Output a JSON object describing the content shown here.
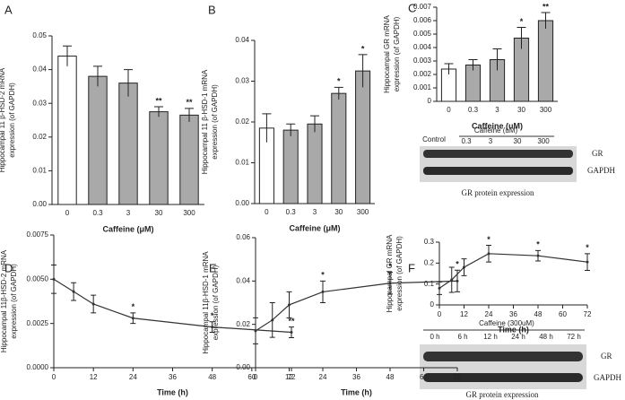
{
  "chart_data": [
    {
      "type": "bar",
      "panel": "A",
      "ylabel": [
        "Hippocampal 11 β-HSD-2 mRNA",
        "expression (of GAPDH)"
      ],
      "xlabel": "Caffeine (μM)",
      "categories": [
        "0",
        "0.3",
        "3",
        "30",
        "300"
      ],
      "values": [
        0.044,
        0.038,
        0.036,
        0.0275,
        0.0265
      ],
      "errors": [
        0.003,
        0.003,
        0.004,
        0.0015,
        0.002
      ],
      "colors": [
        "#ffffff",
        "#a9a9a9",
        "#a9a9a9",
        "#a9a9a9",
        "#a9a9a9"
      ],
      "annotations": [
        null,
        null,
        null,
        "**",
        "**"
      ],
      "ylim": [
        0,
        0.05
      ],
      "yticks": [
        {
          "value": 0,
          "label": "0.00"
        },
        {
          "value": 0.01,
          "label": "0.01"
        },
        {
          "value": 0.02,
          "label": "0.02"
        },
        {
          "value": 0.03,
          "label": "0.03"
        },
        {
          "value": 0.04,
          "label": "0.04"
        },
        {
          "value": 0.05,
          "label": "0.05"
        }
      ]
    },
    {
      "type": "bar",
      "panel": "B",
      "ylabel": [
        "Hippocampal 11 β-HSD-1 mRNA",
        "expression (of GAPDH)"
      ],
      "xlabel": "Caffeine (μM)",
      "categories": [
        "0",
        "0.3",
        "3",
        "30",
        "300"
      ],
      "values": [
        0.0185,
        0.018,
        0.0195,
        0.027,
        0.0325
      ],
      "errors": [
        0.0035,
        0.0015,
        0.002,
        0.0015,
        0.004
      ],
      "colors": [
        "#ffffff",
        "#a9a9a9",
        "#a9a9a9",
        "#a9a9a9",
        "#a9a9a9"
      ],
      "annotations": [
        null,
        null,
        null,
        "*",
        "*"
      ],
      "ylim": [
        0,
        0.04
      ],
      "yticks": [
        {
          "value": 0,
          "label": "0.00"
        },
        {
          "value": 0.01,
          "label": "0.01"
        },
        {
          "value": 0.02,
          "label": "0.02"
        },
        {
          "value": 0.03,
          "label": "0.03"
        },
        {
          "value": 0.04,
          "label": "0.04"
        }
      ]
    },
    {
      "type": "bar",
      "panel": "C",
      "ylabel": [
        "Hippocampal GR mRNA",
        "expression (of GAPDH)"
      ],
      "xlabel": "Caffeine (uM)",
      "categories": [
        "0",
        "0.3",
        "3",
        "30",
        "300"
      ],
      "values": [
        0.0024,
        0.0027,
        0.0031,
        0.0047,
        0.006
      ],
      "errors": [
        0.0004,
        0.0004,
        0.0008,
        0.0008,
        0.0006
      ],
      "colors": [
        "#ffffff",
        "#a9a9a9",
        "#a9a9a9",
        "#a9a9a9",
        "#a9a9a9"
      ],
      "annotations": [
        null,
        null,
        null,
        "*",
        "**"
      ],
      "ylim": [
        0,
        0.007
      ],
      "yticks": [
        0,
        0.001,
        0.002,
        0.003,
        0.004,
        0.005,
        0.006,
        0.007
      ]
    },
    {
      "type": "line",
      "panel": "D",
      "ylabel": [
        "Hippocampal 11β-HSD-2 mRNA",
        "expression (of GAPDH)"
      ],
      "xlabel": "Time  (h)",
      "x": [
        0,
        6,
        12,
        24,
        48,
        72
      ],
      "values": [
        0.005,
        0.0043,
        0.0036,
        0.0028,
        0.0023,
        0.002
      ],
      "errors": [
        0.0008,
        0.0005,
        0.0005,
        0.0003,
        0.0003,
        0.0003
      ],
      "annotations": [
        null,
        null,
        null,
        "*",
        "*",
        "**"
      ],
      "color": "#333333",
      "xlim": [
        0,
        72
      ],
      "xticks": [
        0,
        12,
        24,
        36,
        48,
        60,
        72
      ],
      "ylim": [
        0,
        0.0075
      ],
      "yticks": [
        {
          "value": 0,
          "label": "0.0000"
        },
        {
          "value": 0.0025,
          "label": "0.0025"
        },
        {
          "value": 0.005,
          "label": "0.0050"
        },
        {
          "value": 0.0075,
          "label": "0.0075"
        }
      ]
    },
    {
      "type": "line",
      "panel": "E",
      "ylabel": [
        "Hippocampal 11β-HSD-1 mRNA",
        "expression (of GAPDH)"
      ],
      "xlabel": "Time  (h)",
      "x": [
        0,
        6,
        12,
        24,
        48,
        72
      ],
      "values": [
        0.017,
        0.022,
        0.029,
        0.035,
        0.039,
        0.04
      ],
      "errors": [
        0.006,
        0.008,
        0.006,
        0.005,
        0.005,
        0.005
      ],
      "annotations": [
        null,
        null,
        null,
        "*",
        "*",
        "*"
      ],
      "color": "#333333",
      "xlim": [
        0,
        72
      ],
      "xticks": [
        0,
        12,
        24,
        36,
        48,
        60,
        72
      ],
      "ylim": [
        0,
        0.06
      ],
      "yticks": [
        {
          "value": 0,
          "label": "0.00"
        },
        {
          "value": 0.02,
          "label": "0.02"
        },
        {
          "value": 0.04,
          "label": "0.04"
        },
        {
          "value": 0.06,
          "label": "0.06"
        }
      ]
    },
    {
      "type": "line",
      "panel": "F",
      "ylabel": [
        "Hippocampal GR mRNA",
        "expression (of GAPDH)"
      ],
      "xlabel": "Time (h)",
      "x": [
        0,
        6,
        12,
        24,
        48,
        72
      ],
      "values": [
        0.08,
        0.12,
        0.18,
        0.245,
        0.235,
        0.205
      ],
      "errors": [
        0.03,
        0.06,
        0.04,
        0.04,
        0.025,
        0.04
      ],
      "annotations": [
        null,
        null,
        null,
        "*",
        "*",
        "*"
      ],
      "color": "#333333",
      "xlim": [
        0,
        72
      ],
      "xticks": [
        0,
        12,
        24,
        36,
        48,
        60,
        72
      ],
      "ylim": [
        0,
        0.3
      ],
      "yticks": [
        0,
        0.1,
        0.2,
        0.3
      ]
    }
  ],
  "blots": [
    {
      "title": "Caffeine (uM)",
      "control": "Control",
      "lanes": [
        "0.3",
        "3",
        "30",
        "300"
      ],
      "rows": [
        "GR",
        "GAPDH"
      ],
      "caption": "GR protein expression"
    },
    {
      "title": "Caffeine (300uM)",
      "lanes": [
        "0 h",
        "6 h",
        "12 h",
        "24 h",
        "48 h",
        "72 h"
      ],
      "rows": [
        "GR",
        "GAPDH"
      ],
      "caption": "GR protein expression"
    }
  ]
}
